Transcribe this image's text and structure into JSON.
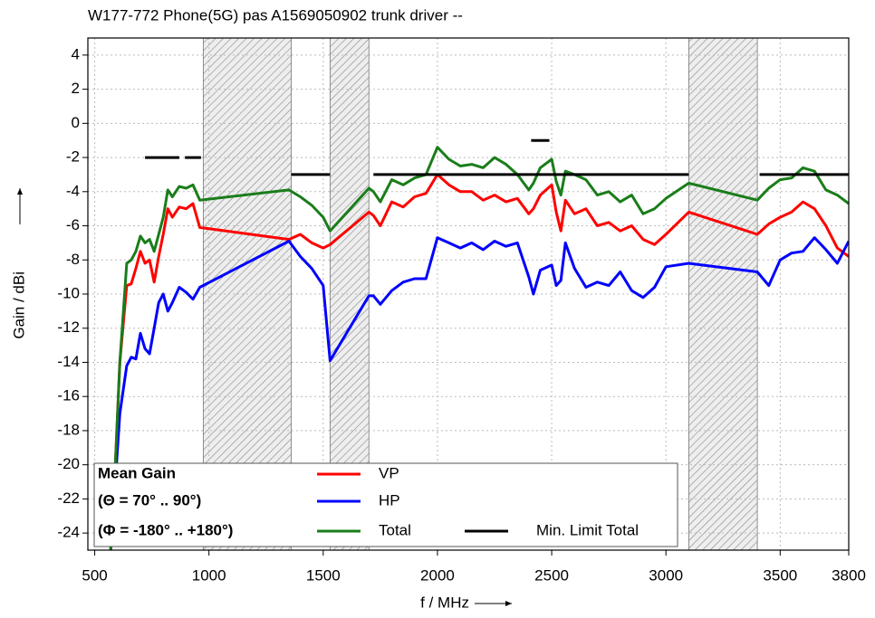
{
  "chart_data": {
    "type": "line",
    "title": "W177-772 Phone(5G) pas A1569050902 trunk driver --",
    "xlabel": "f / MHz",
    "ylabel": "Gain / dBi",
    "xlim": [
      470,
      3800
    ],
    "ylim": [
      -25,
      5
    ],
    "xticks": [
      500,
      1000,
      1500,
      2000,
      2500,
      3000,
      3500,
      3800
    ],
    "yticks": [
      4,
      2,
      0,
      -2,
      -4,
      -6,
      -8,
      -10,
      -12,
      -14,
      -16,
      -18,
      -20,
      -22,
      -24
    ],
    "grid": true,
    "legend": "lower left",
    "legend_title": [
      "Mean Gain",
      "(Θ = 70° .. 90°)",
      "(Φ = -180° .. +180°)"
    ],
    "shaded_regions": [
      [
        975,
        1360
      ],
      [
        1530,
        1700
      ],
      [
        3100,
        3400
      ]
    ],
    "series": [
      {
        "name": "VP",
        "color": "#ff0000",
        "x": [
          570,
          590,
          610,
          640,
          660,
          680,
          700,
          720,
          740,
          760,
          780,
          800,
          820,
          840,
          870,
          900,
          930,
          960,
          1350,
          1400,
          1450,
          1500,
          1530,
          1700,
          1720,
          1750,
          1800,
          1850,
          1900,
          1950,
          2000,
          2050,
          2100,
          2150,
          2200,
          2250,
          2300,
          2350,
          2400,
          2420,
          2450,
          2500,
          2520,
          2540,
          2560,
          2600,
          2650,
          2700,
          2750,
          2800,
          2850,
          2900,
          2950,
          3000,
          3100,
          3400,
          3450,
          3500,
          3550,
          3600,
          3650,
          3700,
          3750,
          3800
        ],
        "values": [
          -25,
          -20,
          -14,
          -9.5,
          -9.4,
          -8.5,
          -7.5,
          -8.2,
          -8.0,
          -9.3,
          -7.8,
          -6.5,
          -5.0,
          -5.5,
          -4.9,
          -5.0,
          -4.7,
          -6.1,
          -6.8,
          -6.5,
          -7.0,
          -7.3,
          -7.1,
          -5.2,
          -5.4,
          -6.0,
          -4.6,
          -4.9,
          -4.3,
          -4.1,
          -3.0,
          -3.6,
          -4.0,
          -4.0,
          -4.5,
          -4.2,
          -4.6,
          -4.4,
          -5.3,
          -5.0,
          -4.2,
          -3.6,
          -5.2,
          -6.3,
          -4.5,
          -5.3,
          -5.0,
          -6.0,
          -5.8,
          -6.3,
          -6.0,
          -6.8,
          -7.1,
          -6.5,
          -5.2,
          -6.5,
          -5.9,
          -5.5,
          -5.2,
          -4.6,
          -5.0,
          -6.0,
          -7.3,
          -7.8
        ]
      },
      {
        "name": "HP",
        "color": "#0000ff",
        "x": [
          570,
          590,
          610,
          640,
          660,
          680,
          700,
          720,
          740,
          760,
          780,
          800,
          820,
          840,
          870,
          900,
          930,
          960,
          1350,
          1400,
          1450,
          1500,
          1530,
          1700,
          1720,
          1750,
          1800,
          1850,
          1900,
          1950,
          2000,
          2050,
          2100,
          2150,
          2200,
          2250,
          2300,
          2350,
          2400,
          2420,
          2450,
          2500,
          2520,
          2540,
          2560,
          2600,
          2650,
          2700,
          2750,
          2800,
          2850,
          2900,
          2950,
          3000,
          3100,
          3400,
          3450,
          3500,
          3550,
          3600,
          3650,
          3700,
          3750,
          3800
        ],
        "values": [
          -25,
          -21,
          -17,
          -14.2,
          -13.7,
          -13.8,
          -12.3,
          -13.2,
          -13.5,
          -12,
          -10.5,
          -10,
          -11,
          -10.5,
          -9.6,
          -9.9,
          -10.3,
          -9.6,
          -6.9,
          -7.8,
          -8.5,
          -9.5,
          -13.9,
          -10.1,
          -10.1,
          -10.6,
          -9.8,
          -9.3,
          -9.1,
          -9.1,
          -6.7,
          -7.0,
          -7.3,
          -7.0,
          -7.4,
          -6.9,
          -7.2,
          -7.0,
          -9.0,
          -10.0,
          -8.6,
          -8.3,
          -9.5,
          -9.2,
          -7.0,
          -8.5,
          -9.6,
          -9.3,
          -9.5,
          -8.7,
          -9.8,
          -10.2,
          -9.6,
          -8.4,
          -8.2,
          -8.7,
          -9.5,
          -8.0,
          -7.6,
          -7.5,
          -6.7,
          -7.4,
          -8.2,
          -6.9
        ]
      },
      {
        "name": "Total",
        "color": "#1a7d1a",
        "x": [
          570,
          590,
          610,
          640,
          660,
          680,
          700,
          720,
          740,
          760,
          780,
          800,
          820,
          840,
          870,
          900,
          930,
          960,
          1350,
          1400,
          1450,
          1500,
          1530,
          1700,
          1720,
          1750,
          1800,
          1850,
          1900,
          1950,
          2000,
          2050,
          2100,
          2150,
          2200,
          2250,
          2300,
          2350,
          2400,
          2420,
          2450,
          2500,
          2520,
          2540,
          2560,
          2600,
          2650,
          2700,
          2750,
          2800,
          2850,
          2900,
          2950,
          3000,
          3100,
          3400,
          3450,
          3500,
          3550,
          3600,
          3650,
          3700,
          3750,
          3800
        ],
        "values": [
          -25,
          -20,
          -14,
          -8.2,
          -8,
          -7.5,
          -6.6,
          -7,
          -6.8,
          -7.5,
          -6.5,
          -5.5,
          -3.9,
          -4.3,
          -3.7,
          -3.8,
          -3.6,
          -4.5,
          -3.9,
          -4.3,
          -4.8,
          -5.5,
          -6.3,
          -3.8,
          -4.0,
          -4.6,
          -3.3,
          -3.6,
          -3.2,
          -3.0,
          -1.4,
          -2.1,
          -2.5,
          -2.4,
          -2.6,
          -2.0,
          -2.4,
          -3.0,
          -3.9,
          -3.5,
          -2.6,
          -2.1,
          -3.4,
          -4.2,
          -2.8,
          -3.0,
          -3.3,
          -4.2,
          -4.0,
          -4.6,
          -4.2,
          -5.3,
          -5.0,
          -4.4,
          -3.5,
          -4.5,
          -3.8,
          -3.3,
          -3.2,
          -2.6,
          -2.8,
          -3.9,
          -4.2,
          -4.7
        ]
      },
      {
        "name": "Min. Limit Total",
        "color": "#000000",
        "x": [
          720,
          870,
          null,
          895,
          965,
          null,
          1360,
          1530,
          null,
          1720,
          3100,
          null,
          2410,
          2490,
          null,
          3410,
          3800
        ],
        "values": [
          -2,
          -2,
          null,
          -2,
          -2,
          null,
          -3,
          -3,
          null,
          -3,
          -3,
          null,
          -1,
          -1,
          null,
          -3,
          -3
        ]
      }
    ]
  }
}
